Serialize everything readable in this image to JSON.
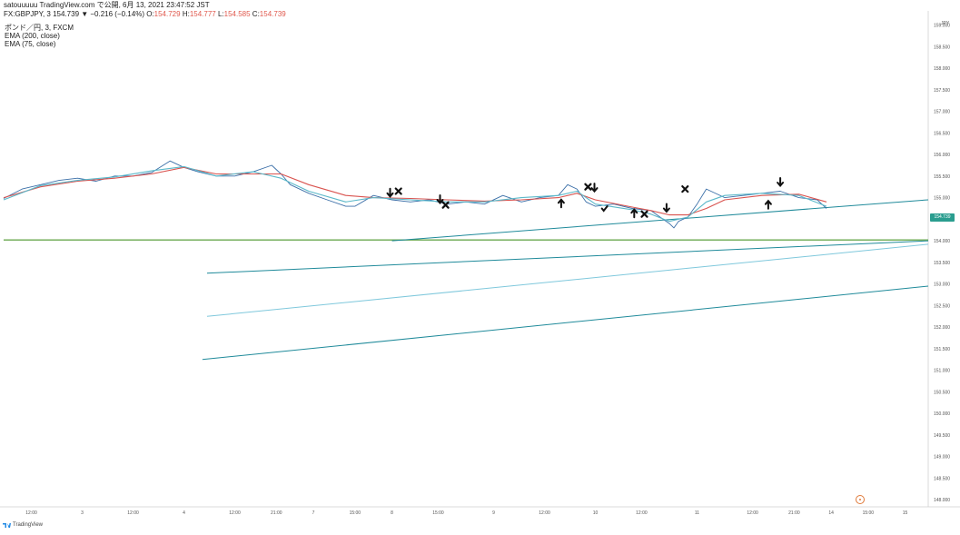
{
  "header": {
    "line1": "satouuuuu TradingView.com で公開, 6月 13, 2021 23:47:52 JST",
    "line2_prefix": "FX:GBPJPY, 3 154.739 ▼ −0.216 (−0.14%) ",
    "o_label": "O:",
    "o_val": "154.729",
    "h_label": "H:",
    "h_val": "154.777",
    "l_label": "L:",
    "l_val": "154.585",
    "c_label": "C:",
    "c_val": "154.739"
  },
  "legend": {
    "symbol": "ポンド／円, 3, FXCM",
    "ema200": "EMA (200, close)",
    "ema75": "EMA (75, close)"
  },
  "price_axis": {
    "currency": "JPY",
    "last_price": "154.739"
  },
  "footer": {
    "logo_text": "TradingView"
  },
  "colors": {
    "price": "#3b6fa8",
    "ema200": "#d9534f",
    "ema75": "#5bb8c9",
    "trend": "#1f8a9a",
    "trend_light": "#7fc8dc",
    "support": "#6aa84f",
    "tag": "#2a9d8f"
  },
  "chart_data": {
    "type": "line",
    "title": "ポンド／円, 3, FXCM",
    "ylim": [
      147.9,
      159.2
    ],
    "yticks": [
      159.0,
      158.5,
      158.0,
      157.5,
      157.0,
      156.5,
      156.0,
      155.5,
      155.0,
      154.5,
      154.0,
      153.5,
      153.0,
      152.5,
      152.0,
      151.5,
      151.0,
      150.5,
      150.0,
      149.5,
      149.0,
      148.5,
      148.0
    ],
    "ytick_labels": [
      "159.000",
      "158.500",
      "158.000",
      "157.500",
      "157.000",
      "156.500",
      "156.000",
      "155.500",
      "155.000",
      "154.500",
      "154.000",
      "153.500",
      "153.000",
      "152.500",
      "152.000",
      "151.500",
      "151.000",
      "150.500",
      "150.000",
      "149.500",
      "149.000",
      "148.500",
      "148.000"
    ],
    "xlim": [
      0,
      100
    ],
    "xticks": [
      3,
      8.5,
      14,
      19.5,
      25,
      29.5,
      33.5,
      38,
      42,
      47,
      53,
      58.5,
      64,
      69,
      75,
      81,
      85.5,
      89.5,
      93.5,
      97.5
    ],
    "xtick_labels": [
      "12:00",
      "3",
      "12:00",
      "4",
      "12:00",
      "21:00",
      "7",
      "15:00",
      "8",
      "15:00",
      "9",
      "12:00",
      "10",
      "12:00",
      "11",
      "12:00",
      "21:00",
      "14",
      "15:00",
      "15"
    ],
    "series": [
      {
        "name": "ポンド／円",
        "x": [
          0,
          2,
          4,
          6,
          8,
          10,
          12,
          14,
          16,
          18,
          19.5,
          21,
          23,
          25,
          27,
          29,
          30,
          31,
          33,
          35,
          37,
          38,
          40,
          42,
          44,
          46,
          48,
          50,
          52,
          54,
          56,
          58,
          60,
          61,
          62,
          63,
          64,
          66,
          68,
          70,
          71,
          72,
          72.5,
          73,
          74,
          75,
          76,
          78,
          80,
          82,
          84,
          86,
          88,
          89
        ],
        "y": [
          154.98,
          155.2,
          155.3,
          155.4,
          155.45,
          155.38,
          155.5,
          155.5,
          155.58,
          155.85,
          155.7,
          155.6,
          155.5,
          155.5,
          155.6,
          155.75,
          155.55,
          155.3,
          155.1,
          154.95,
          154.8,
          154.8,
          155.05,
          154.95,
          154.9,
          154.95,
          154.85,
          154.9,
          154.85,
          155.05,
          154.9,
          155.0,
          155.05,
          155.3,
          155.2,
          154.9,
          154.8,
          154.85,
          154.75,
          154.7,
          154.55,
          154.4,
          154.3,
          154.45,
          154.55,
          154.85,
          155.2,
          155.0,
          155.05,
          155.1,
          155.15,
          155.0,
          154.95,
          154.75
        ]
      },
      {
        "name": "EMA (200, close)",
        "x": [
          0,
          4,
          8,
          12,
          16,
          19.5,
          23,
          27,
          30,
          33,
          37,
          40,
          44,
          48,
          52,
          56,
          60,
          62,
          64,
          68,
          70,
          72,
          74,
          76,
          78,
          82,
          86,
          89
        ],
        "y": [
          155.0,
          155.25,
          155.38,
          155.45,
          155.55,
          155.7,
          155.55,
          155.55,
          155.55,
          155.3,
          155.05,
          155.0,
          154.98,
          154.95,
          154.92,
          154.95,
          155.0,
          155.1,
          154.95,
          154.78,
          154.7,
          154.6,
          154.6,
          154.75,
          154.95,
          155.05,
          155.08,
          154.9
        ]
      },
      {
        "name": "EMA (75, close)",
        "x": [
          0,
          4,
          8,
          12,
          16,
          19.5,
          23,
          27,
          30,
          33,
          37,
          40,
          44,
          48,
          52,
          56,
          60,
          62,
          64,
          68,
          70,
          72,
          74,
          76,
          78,
          82,
          86,
          89
        ],
        "y": [
          154.95,
          155.28,
          155.4,
          155.48,
          155.62,
          155.72,
          155.5,
          155.6,
          155.45,
          155.15,
          154.9,
          155.0,
          154.95,
          154.9,
          154.9,
          155.0,
          155.05,
          155.15,
          154.85,
          154.72,
          154.62,
          154.45,
          154.55,
          154.9,
          155.05,
          155.1,
          155.05,
          154.8
        ]
      }
    ],
    "annotations": {
      "trendlines": [
        {
          "x": [
            42,
            100
          ],
          "y": [
            154.0,
            154.95
          ],
          "style": "trend"
        },
        {
          "x": [
            22,
            100
          ],
          "y": [
            153.25,
            154.0
          ],
          "style": "trend"
        },
        {
          "x": [
            22,
            100
          ],
          "y": [
            152.25,
            153.92
          ],
          "style": "trend_light"
        },
        {
          "x": [
            21.5,
            100
          ],
          "y": [
            151.25,
            152.95
          ],
          "style": "trend"
        }
      ],
      "hlines": [
        {
          "y": 154.02,
          "style": "support"
        }
      ],
      "markers": [
        {
          "x": 41.8,
          "y": 155.1,
          "symbol": "down-arrow"
        },
        {
          "x": 42.7,
          "y": 155.15,
          "symbol": "cross"
        },
        {
          "x": 47.2,
          "y": 154.95,
          "symbol": "down-arrow"
        },
        {
          "x": 47.8,
          "y": 154.83,
          "symbol": "cross"
        },
        {
          "x": 60.3,
          "y": 154.88,
          "symbol": "up-arrow"
        },
        {
          "x": 63.2,
          "y": 155.25,
          "symbol": "cross"
        },
        {
          "x": 63.9,
          "y": 155.22,
          "symbol": "down-arrow"
        },
        {
          "x": 65.0,
          "y": 154.75,
          "symbol": "check"
        },
        {
          "x": 68.2,
          "y": 154.65,
          "symbol": "up-arrow"
        },
        {
          "x": 69.3,
          "y": 154.62,
          "symbol": "cross"
        },
        {
          "x": 71.7,
          "y": 154.75,
          "symbol": "down-arrow"
        },
        {
          "x": 73.7,
          "y": 155.2,
          "symbol": "cross"
        },
        {
          "x": 82.7,
          "y": 154.85,
          "symbol": "up-arrow"
        },
        {
          "x": 84.0,
          "y": 155.35,
          "symbol": "down-arrow"
        }
      ]
    },
    "grid": false,
    "legend": "top-left"
  }
}
